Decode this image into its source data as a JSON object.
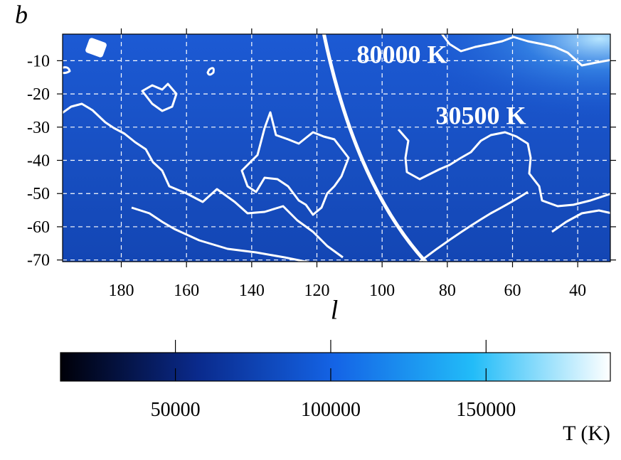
{
  "chart_data": {
    "type": "heatmap",
    "xlabel": "l",
    "ylabel": "b",
    "xlim": [
      198,
      30
    ],
    "ylim": [
      -70.5,
      -2
    ],
    "xticks": [
      180,
      160,
      140,
      120,
      100,
      80,
      60,
      40
    ],
    "yticks": [
      -10,
      -20,
      -30,
      -40,
      -50,
      -60,
      -70
    ],
    "grid": true,
    "contours": [
      {
        "value": 80000,
        "label": "80000 K"
      },
      {
        "value": 30500,
        "label": "30500 K"
      }
    ],
    "colorbar": {
      "label": "T (K)",
      "lim": [
        13000,
        190000
      ],
      "ticks": [
        50000,
        100000,
        150000
      ],
      "colors": [
        "#000008",
        "#0a2a8c",
        "#1464e6",
        "#22bcf8",
        "#ffffff"
      ]
    }
  }
}
